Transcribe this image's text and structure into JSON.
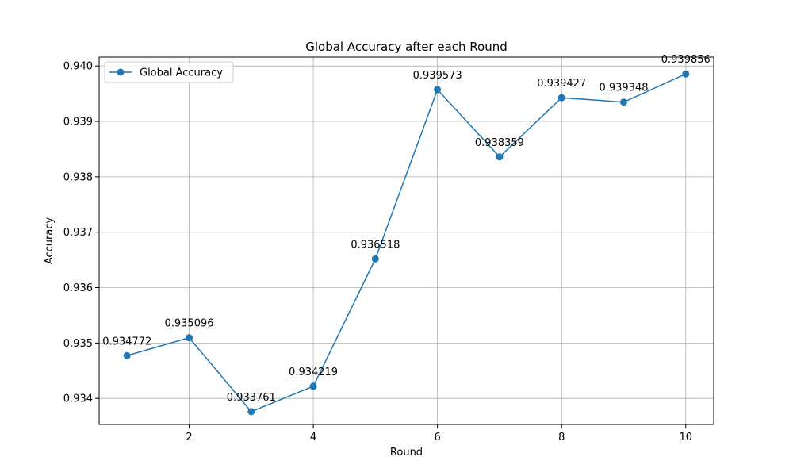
{
  "chart_data": {
    "type": "line",
    "title": "Global Accuracy after each Round",
    "xlabel": "Round",
    "ylabel": "Accuracy",
    "x": [
      1,
      2,
      3,
      4,
      5,
      6,
      7,
      8,
      9,
      10
    ],
    "xlim": [
      0.55,
      10.45
    ],
    "ylim": [
      0.93353,
      0.94016
    ],
    "xticks": [
      2,
      4,
      6,
      8,
      10
    ],
    "yticks": [
      0.934,
      0.935,
      0.936,
      0.937,
      0.938,
      0.939,
      0.94
    ],
    "ytick_labels": [
      "0.934",
      "0.935",
      "0.936",
      "0.937",
      "0.938",
      "0.939",
      "0.940"
    ],
    "grid": true,
    "legend_position": "top-left",
    "series": [
      {
        "name": "Global Accuracy",
        "color": "#1f77b4",
        "marker": "circle",
        "values": [
          0.934772,
          0.935096,
          0.933761,
          0.934219,
          0.936518,
          0.939573,
          0.938359,
          0.939427,
          0.939348,
          0.939856
        ],
        "labels": [
          "0.934772",
          "0.935096",
          "0.933761",
          "0.934219",
          "0.936518",
          "0.939573",
          "0.938359",
          "0.939427",
          "0.939348",
          "0.939856"
        ]
      }
    ]
  }
}
